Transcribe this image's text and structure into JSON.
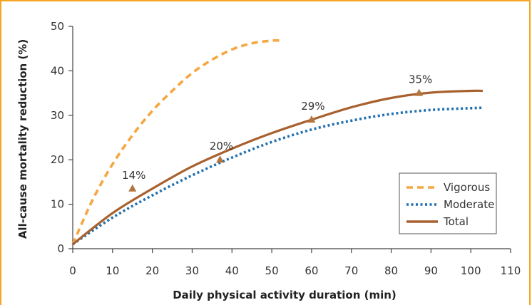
{
  "chart_data": {
    "type": "line",
    "title": "",
    "xlabel": "Daily physical activity duration (min)",
    "ylabel": "All-cause mortality reduction (%)",
    "xlim": [
      0,
      110
    ],
    "ylim": [
      0,
      50
    ],
    "xticks": [
      0,
      10,
      20,
      30,
      40,
      50,
      60,
      70,
      80,
      90,
      100,
      110
    ],
    "yticks": [
      0,
      10,
      20,
      30,
      40,
      50
    ],
    "xtick_labels": [
      "0",
      "10",
      "20",
      "30",
      "40",
      "50",
      "60",
      "70",
      "80",
      "90",
      "100",
      "110"
    ],
    "ytick_labels": [
      "0",
      "10",
      "20",
      "30",
      "40",
      "50"
    ],
    "grid": false,
    "legend": "bottom-right",
    "series": [
      {
        "name": "Vigorous",
        "style": "dashed",
        "color": "#f5a742",
        "x": [
          0,
          5,
          10,
          15,
          20,
          25,
          30,
          35,
          40,
          45,
          50,
          52
        ],
        "y": [
          1,
          11,
          19,
          25.5,
          31,
          35.5,
          39.5,
          42.5,
          44.8,
          46.2,
          46.8,
          46.8
        ]
      },
      {
        "name": "Moderate",
        "style": "dotted",
        "color": "#1f6fb0",
        "x": [
          0,
          10,
          20,
          30,
          40,
          50,
          60,
          70,
          80,
          90,
          100,
          103
        ],
        "y": [
          1,
          7,
          12,
          16.5,
          20.5,
          24,
          26.8,
          28.8,
          30.3,
          31.2,
          31.6,
          31.7
        ]
      },
      {
        "name": "Total",
        "style": "solid",
        "color": "#a8612e",
        "x": [
          0,
          10,
          20,
          30,
          40,
          50,
          60,
          70,
          80,
          90,
          100,
          103
        ],
        "y": [
          1,
          8,
          13.5,
          18.5,
          22.5,
          26,
          29,
          31.8,
          33.9,
          35.1,
          35.5,
          35.5
        ]
      }
    ],
    "markers": {
      "color": "#b5743c",
      "points": [
        {
          "x": 15,
          "y": 13.5,
          "label": "14%"
        },
        {
          "x": 37,
          "y": 20,
          "label": "20%"
        },
        {
          "x": 60,
          "y": 29,
          "label": "29%"
        },
        {
          "x": 87,
          "y": 35,
          "label": "35%"
        }
      ]
    }
  }
}
